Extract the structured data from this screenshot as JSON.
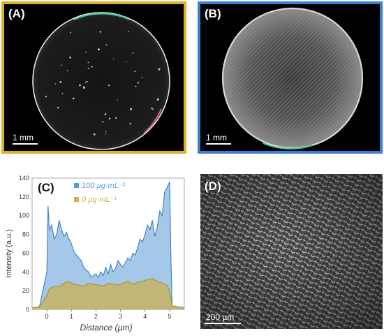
{
  "panels": {
    "a": {
      "label": "(A)",
      "scale_bar": "1 mm",
      "border_color": "#e0b020"
    },
    "b": {
      "label": "(B)",
      "scale_bar": "1 mm",
      "border_color": "#3a7fd5"
    },
    "c": {
      "label": "(C)"
    },
    "d": {
      "label": "(D)",
      "scale_bar": "200 µm"
    }
  },
  "chart_data": {
    "type": "area",
    "xlabel": "Distance (µm)",
    "ylabel": "Intensity (a.u.)",
    "xlim": [
      -0.6,
      5.6
    ],
    "ylim": [
      0,
      140
    ],
    "xticks": [
      0,
      1,
      2,
      3,
      4,
      5
    ],
    "yticks": [
      0,
      20,
      40,
      60,
      80,
      100,
      120,
      140
    ],
    "legend_position": "top-center",
    "series": [
      {
        "name": "100 µg·mL⁻¹",
        "color": "#5b9bd5",
        "x": [
          -0.6,
          -0.3,
          0.0,
          0.05,
          0.1,
          0.2,
          0.3,
          0.4,
          0.5,
          0.6,
          0.7,
          0.8,
          0.9,
          1.0,
          1.1,
          1.2,
          1.3,
          1.4,
          1.5,
          1.6,
          1.7,
          1.8,
          1.9,
          2.0,
          2.1,
          2.2,
          2.3,
          2.4,
          2.5,
          2.6,
          2.7,
          2.8,
          2.9,
          3.0,
          3.1,
          3.2,
          3.3,
          3.4,
          3.5,
          3.6,
          3.7,
          3.8,
          3.9,
          4.0,
          4.1,
          4.2,
          4.3,
          4.4,
          4.5,
          4.6,
          4.7,
          4.8,
          4.9,
          5.0,
          5.05,
          5.1,
          5.3,
          5.6
        ],
        "values": [
          2,
          3,
          40,
          110,
          85,
          90,
          75,
          80,
          95,
          85,
          78,
          82,
          75,
          70,
          62,
          58,
          55,
          52,
          45,
          42,
          40,
          35,
          36,
          38,
          34,
          40,
          36,
          45,
          38,
          48,
          40,
          44,
          52,
          48,
          45,
          50,
          55,
          52,
          60,
          58,
          66,
          75,
          72,
          80,
          90,
          85,
          95,
          78,
          88,
          105,
          100,
          125,
          130,
          136,
          60,
          4,
          3,
          2
        ]
      },
      {
        "name": "0 µg·mL⁻¹",
        "color": "#c8b15a",
        "x": [
          -0.6,
          -0.3,
          0.0,
          0.1,
          0.3,
          0.5,
          0.7,
          0.9,
          1.1,
          1.3,
          1.5,
          1.7,
          1.9,
          2.1,
          2.3,
          2.5,
          2.7,
          2.9,
          3.1,
          3.3,
          3.5,
          3.7,
          3.9,
          4.1,
          4.3,
          4.5,
          4.7,
          4.9,
          5.0,
          5.1,
          5.3,
          5.6
        ],
        "values": [
          2,
          3,
          15,
          22,
          25,
          24,
          28,
          30,
          27,
          26,
          25,
          28,
          27,
          26,
          25,
          28,
          27,
          26,
          28,
          30,
          27,
          29,
          30,
          32,
          33,
          30,
          28,
          26,
          20,
          4,
          3,
          2
        ]
      }
    ]
  }
}
